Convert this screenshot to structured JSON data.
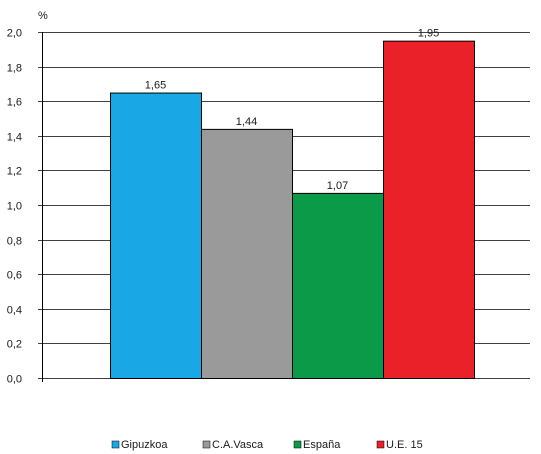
{
  "chart_data": {
    "type": "bar",
    "title": "",
    "xlabel": "",
    "ylabel": "%",
    "categories": [
      "Gipuzkoa",
      "C.A.Vasca",
      "España",
      "U.E. 15"
    ],
    "values": [
      1.65,
      1.44,
      1.07,
      1.95
    ],
    "value_labels": [
      "1,65",
      "1,44",
      "1,07",
      "1,95"
    ],
    "colors": [
      "#1aa7e6",
      "#9a9a9a",
      "#0a9a48",
      "#ea2128"
    ],
    "ylim": [
      0,
      2.0
    ],
    "y_ticks": [
      0,
      0.2,
      0.4,
      0.6,
      0.8,
      1.0,
      1.2,
      1.4,
      1.6,
      1.8,
      2.0
    ],
    "y_tick_labels": [
      "0,0",
      "0,2",
      "0,4",
      "0,6",
      "0,8",
      "1,0",
      "1,2",
      "1,4",
      "1,6",
      "1,8",
      "2,0"
    ],
    "grid": true,
    "legend": {
      "placement": "bottom",
      "entries": [
        "Gipuzkoa",
        "C.A.Vasca",
        "España",
        "U.E. 15"
      ]
    }
  }
}
